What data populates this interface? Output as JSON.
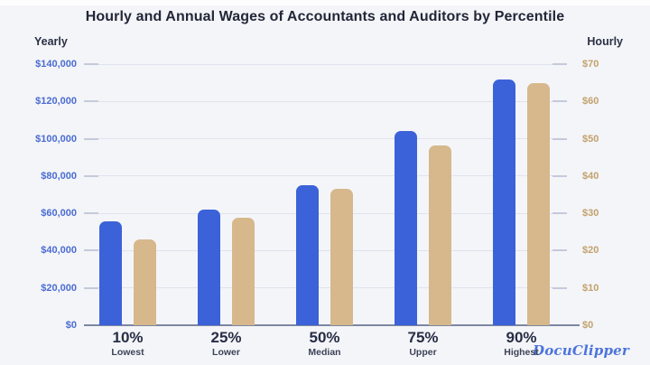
{
  "title": "Hourly and Annual Wages of Accountants and Auditors by Percentile",
  "brand": "DocuClipper",
  "colors": {
    "background": "#f4f5f8",
    "title_text": "#222738",
    "caption_text": "#2a3045",
    "yearly_bar": "#3b62d8",
    "hourly_bar": "#d6b88c",
    "yearly_axis_text": "#4a6cd3",
    "hourly_axis_text": "#c2a26e",
    "grid": "#dfe3ee",
    "tick_dash": "#c4cadb",
    "baseline": "#7c87a2",
    "brand_text": "#4d74dd"
  },
  "chart_data": {
    "type": "bar",
    "categories": [
      {
        "percent": "10%",
        "label": "Lowest"
      },
      {
        "percent": "25%",
        "label": "Lower"
      },
      {
        "percent": "50%",
        "label": "Median"
      },
      {
        "percent": "75%",
        "label": "Upper"
      },
      {
        "percent": "90%",
        "label": "Highest"
      }
    ],
    "series": [
      {
        "name": "Yearly",
        "axis": "left",
        "values": [
          55800,
          62100,
          74900,
          104200,
          131800
        ]
      },
      {
        "name": "Hourly",
        "axis": "right",
        "values": [
          23.1,
          28.8,
          36.7,
          48.2,
          65.0
        ]
      }
    ],
    "left_axis": {
      "label": "Yearly",
      "min": 0,
      "max": 140000,
      "ticks": [
        "$140,000",
        "$120,000",
        "$100,000",
        "$80,000",
        "$60,000",
        "$40,000",
        "$20,000",
        "$0"
      ]
    },
    "right_axis": {
      "label": "Hourly",
      "min": 0,
      "max": 70,
      "ticks": [
        "$70",
        "$60",
        "$50",
        "$40",
        "$30",
        "$20",
        "$10",
        "$0"
      ]
    },
    "grid": true,
    "legend": "none"
  }
}
